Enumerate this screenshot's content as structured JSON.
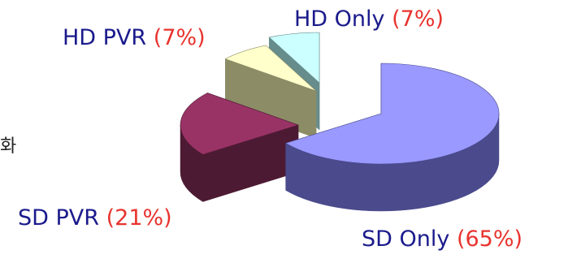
{
  "chart_data": {
    "type": "pie",
    "title": "",
    "slices": [
      {
        "label": "SD Only",
        "value": 65,
        "value_text": "(65%)",
        "top_color": "#9999ff",
        "side_color": "#4a4a8c"
      },
      {
        "label": "SD PVR",
        "value": 21,
        "value_text": "(21%)",
        "top_color": "#993366",
        "side_color": "#4d1a33"
      },
      {
        "label": "HD PVR",
        "value": 7,
        "value_text": "(7%)",
        "top_color": "#ffffcc",
        "side_color": "#8c8c66"
      },
      {
        "label": "HD Only",
        "value": 7,
        "value_text": "(7%)",
        "top_color": "#ccffff",
        "side_color": "#668c8c"
      }
    ],
    "style": "3d-exploded",
    "legend": "none"
  },
  "cut_off_text": "화"
}
